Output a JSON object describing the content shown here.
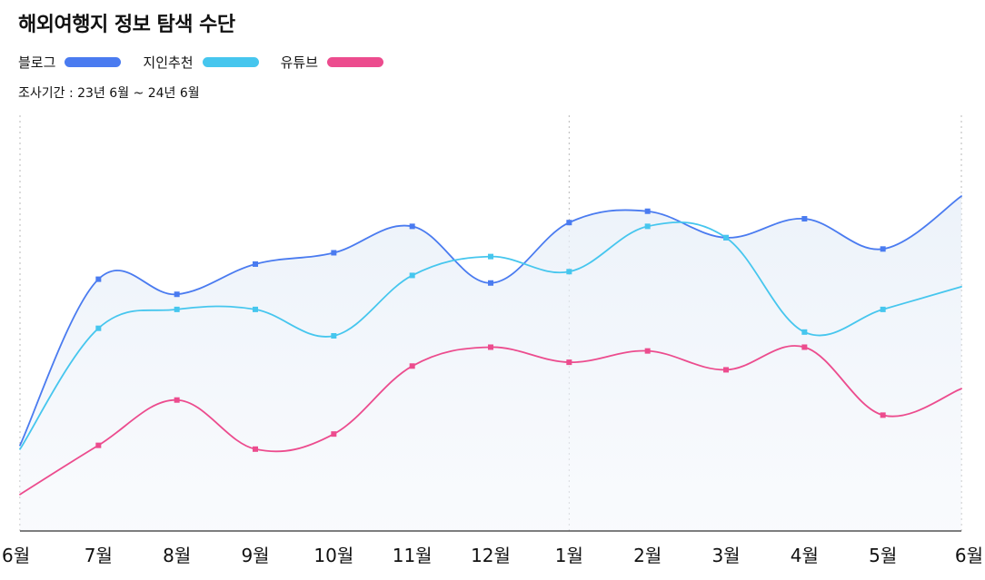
{
  "chart_data": {
    "type": "line",
    "title": "해외여행지 정보 탐색 수단",
    "subtitle": "조사기간 : 23년 6월 ~ 24년 6월",
    "xlabel": "",
    "ylabel": "",
    "categories": [
      "6월",
      "7월",
      "8월",
      "9월",
      "10월",
      "11월",
      "12월",
      "1월",
      "2월",
      "3월",
      "4월",
      "5월",
      "6월"
    ],
    "ylim": [
      0,
      100
    ],
    "grid": false,
    "legend_position": "top-left",
    "series": [
      {
        "name": "블로그",
        "color": "#4a7bf0",
        "values": [
          21,
          65,
          61,
          69,
          72,
          79,
          64,
          80,
          83,
          76,
          81,
          73,
          87
        ]
      },
      {
        "name": "지인추천",
        "color": "#46c6ee",
        "values": [
          20,
          52,
          57,
          57,
          50,
          66,
          71,
          67,
          79,
          76,
          51,
          57,
          63
        ]
      },
      {
        "name": "유튜브",
        "color": "#ec4c8e",
        "values": [
          8,
          21,
          33,
          20,
          24,
          42,
          47,
          43,
          46,
          41,
          47,
          29,
          36
        ]
      }
    ],
    "area_fill_series": "블로그",
    "dashed_separator_at": "1월"
  }
}
